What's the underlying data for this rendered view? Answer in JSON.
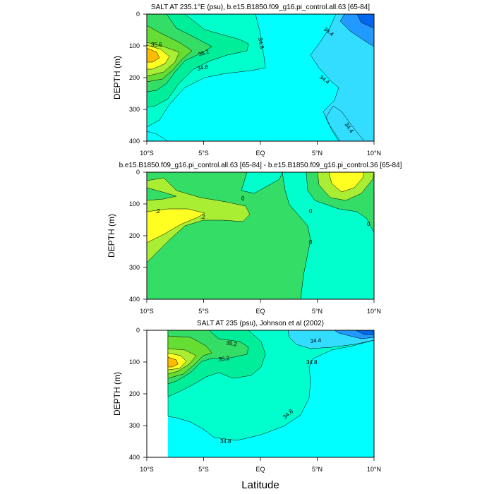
{
  "colors": {
    "cyan": "#00ffff",
    "aqua": "#00ffcc",
    "seafoam": "#00ee99",
    "green1": "#33dd66",
    "green2": "#66dd33",
    "yellowgreen": "#aaee33",
    "yellow": "#ffff22",
    "orange": "#ffbb00",
    "lightblue": "#33ddff",
    "blue": "#2299ff",
    "deepblue": "#0066ee"
  },
  "chart_data": [
    {
      "type": "contour",
      "title": "SALT AT 235.1°E (psu), b.e15.B1850.f09_g16.pi_control.all.63 [65-84]",
      "xlabel": "",
      "ylabel": "DEPTH (m)",
      "xlim": [
        -10,
        10
      ],
      "ylim": [
        400,
        0
      ],
      "xticks": [
        -10,
        -5,
        0,
        5,
        10
      ],
      "xtick_labels": [
        "10°S",
        "5°S",
        "EQ",
        "5°N",
        "10°N"
      ],
      "yticks": [
        0,
        100,
        200,
        300,
        400
      ],
      "ytick_labels": [
        "0",
        "100",
        "200",
        "300",
        "400"
      ],
      "contour_labels": [
        "35.6",
        "35.2",
        "34.8",
        "34.8",
        "34.4",
        "34.4",
        "34.4"
      ]
    },
    {
      "type": "contour",
      "title": "b.e15.B1850.f09_g16.pi_control.all.63 [65-84] - b.e15.B1850.f09_g16.pi_control.36 [65-84]",
      "xlabel": "",
      "ylabel": "DEPTH (m)",
      "xlim": [
        -10,
        10
      ],
      "ylim": [
        400,
        0
      ],
      "xticks": [
        -10,
        -5,
        0,
        5,
        10
      ],
      "xtick_labels": [
        "10°S",
        "5°S",
        "EQ",
        "5°N",
        "10°N"
      ],
      "yticks": [
        0,
        100,
        200,
        300,
        400
      ],
      "ytick_labels": [
        "0",
        "100",
        "200",
        "300",
        "400"
      ],
      "contour_labels": [
        ".2",
        ".2",
        "0",
        "0",
        "0",
        "0"
      ]
    },
    {
      "type": "contour",
      "title": "SALT AT 235 (psu), Johnson et al (2002)",
      "xlabel": "Latitude",
      "ylabel": "DEPTH (m)",
      "xlim": [
        -10,
        10
      ],
      "ylim": [
        400,
        0
      ],
      "xticks": [
        -10,
        -5,
        0,
        5,
        10
      ],
      "xtick_labels": [
        "10°S",
        "5°S",
        "EQ",
        "5°N",
        "10°N"
      ],
      "yticks": [
        0,
        100,
        200,
        300,
        400
      ],
      "ytick_labels": [
        "0",
        "100",
        "200",
        "300",
        "400"
      ],
      "contour_labels": [
        "35.2",
        "35.2",
        "34.4",
        "34.8",
        "34.8",
        "34.8"
      ]
    }
  ]
}
